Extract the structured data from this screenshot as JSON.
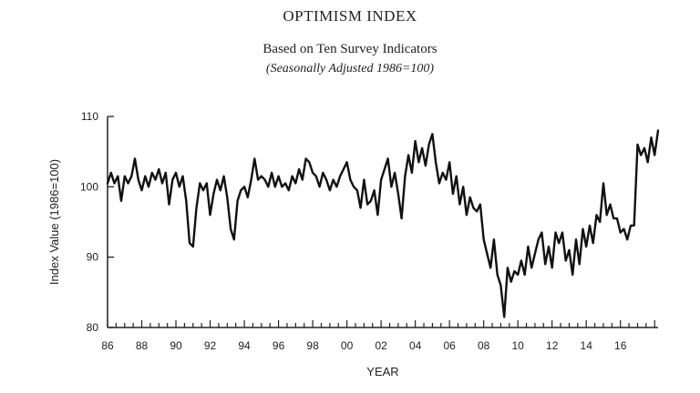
{
  "title": "OPTIMISM INDEX",
  "subtitle": "Based on Ten Survey Indicators",
  "note": "(Seasonally Adjusted 1986=100)",
  "chart_data": {
    "type": "line",
    "title": "OPTIMISM INDEX",
    "xlabel": "YEAR",
    "ylabel": "Index Value (1986=100)",
    "xlim": [
      1986,
      2018.2
    ],
    "ylim": [
      80,
      110
    ],
    "x_tick_labels": [
      "86",
      "88",
      "90",
      "92",
      "94",
      "96",
      "98",
      "00",
      "02",
      "04",
      "06",
      "08",
      "10",
      "12",
      "14",
      "16"
    ],
    "x_tick_values": [
      1986,
      1988,
      1990,
      1992,
      1994,
      1996,
      1998,
      2000,
      2002,
      2004,
      2006,
      2008,
      2010,
      2012,
      2014,
      2016
    ],
    "y_ticks": [
      80,
      90,
      100,
      110
    ],
    "grid": false,
    "line_color": "#111111",
    "series": [
      {
        "name": "Optimism Index",
        "x": [
          1986.0,
          1986.2,
          1986.4,
          1986.6,
          1986.8,
          1987.0,
          1987.2,
          1987.4,
          1987.6,
          1987.8,
          1988.0,
          1988.2,
          1988.4,
          1988.6,
          1988.8,
          1989.0,
          1989.2,
          1989.4,
          1989.6,
          1989.8,
          1990.0,
          1990.2,
          1990.4,
          1990.6,
          1990.8,
          1991.0,
          1991.2,
          1991.4,
          1991.6,
          1991.8,
          1992.0,
          1992.2,
          1992.4,
          1992.6,
          1992.8,
          1993.0,
          1993.2,
          1993.4,
          1993.6,
          1993.8,
          1994.0,
          1994.2,
          1994.4,
          1994.6,
          1994.8,
          1995.0,
          1995.2,
          1995.4,
          1995.6,
          1995.8,
          1996.0,
          1996.2,
          1996.4,
          1996.6,
          1996.8,
          1997.0,
          1997.2,
          1997.4,
          1997.6,
          1997.8,
          1998.0,
          1998.2,
          1998.4,
          1998.6,
          1998.8,
          1999.0,
          1999.2,
          1999.4,
          1999.6,
          1999.8,
          2000.0,
          2000.2,
          2000.4,
          2000.6,
          2000.8,
          2001.0,
          2001.2,
          2001.4,
          2001.6,
          2001.8,
          2002.0,
          2002.2,
          2002.4,
          2002.6,
          2002.8,
          2003.0,
          2003.2,
          2003.4,
          2003.6,
          2003.8,
          2004.0,
          2004.2,
          2004.4,
          2004.6,
          2004.8,
          2005.0,
          2005.2,
          2005.4,
          2005.6,
          2005.8,
          2006.0,
          2006.2,
          2006.4,
          2006.6,
          2006.8,
          2007.0,
          2007.2,
          2007.4,
          2007.6,
          2007.8,
          2008.0,
          2008.2,
          2008.4,
          2008.6,
          2008.8,
          2009.0,
          2009.2,
          2009.4,
          2009.6,
          2009.8,
          2010.0,
          2010.2,
          2010.4,
          2010.6,
          2010.8,
          2011.0,
          2011.2,
          2011.4,
          2011.6,
          2011.8,
          2012.0,
          2012.2,
          2012.4,
          2012.6,
          2012.8,
          2013.0,
          2013.2,
          2013.4,
          2013.6,
          2013.8,
          2014.0,
          2014.2,
          2014.4,
          2014.6,
          2014.8,
          2015.0,
          2015.2,
          2015.4,
          2015.6,
          2015.8,
          2016.0,
          2016.2,
          2016.4,
          2016.6,
          2016.8,
          2017.0,
          2017.2,
          2017.4,
          2017.6,
          2017.8,
          2018.0,
          2018.2
        ],
        "values": [
          100.5,
          102.0,
          100.5,
          101.5,
          98.0,
          101.5,
          100.5,
          101.5,
          104.0,
          101.0,
          99.5,
          101.5,
          100.0,
          102.0,
          101.0,
          102.5,
          100.5,
          102.0,
          97.5,
          101.0,
          102.0,
          100.0,
          101.5,
          98.0,
          92.0,
          91.5,
          97.0,
          100.5,
          99.5,
          100.5,
          96.0,
          99.0,
          101.0,
          99.5,
          101.5,
          98.5,
          94.0,
          92.5,
          98.0,
          99.5,
          100.0,
          98.5,
          101.0,
          104.0,
          101.0,
          101.5,
          101.0,
          100.0,
          102.0,
          100.0,
          101.5,
          100.0,
          100.5,
          99.5,
          101.5,
          100.5,
          102.5,
          101.0,
          104.0,
          103.5,
          102.0,
          101.5,
          100.0,
          102.0,
          101.0,
          99.5,
          101.0,
          100.0,
          101.5,
          102.5,
          103.5,
          101.0,
          100.0,
          99.5,
          97.0,
          101.0,
          97.5,
          98.0,
          99.5,
          96.0,
          101.0,
          102.5,
          104.0,
          100.0,
          102.0,
          99.0,
          95.5,
          101.5,
          104.5,
          102.0,
          106.5,
          103.5,
          105.5,
          103.0,
          106.0,
          107.5,
          103.5,
          100.5,
          102.0,
          101.0,
          103.5,
          99.0,
          101.5,
          97.5,
          100.0,
          96.0,
          98.5,
          97.0,
          96.5,
          97.5,
          92.5,
          90.5,
          88.5,
          92.5,
          87.5,
          86.0,
          81.5,
          88.5,
          86.5,
          88.0,
          87.5,
          89.5,
          87.5,
          91.5,
          88.5,
          90.5,
          92.5,
          93.5,
          89.0,
          91.5,
          88.5,
          93.5,
          92.0,
          93.5,
          89.5,
          91.0,
          87.5,
          92.5,
          89.0,
          94.0,
          91.5,
          94.5,
          92.0,
          96.0,
          95.0,
          100.5,
          96.0,
          97.5,
          95.5,
          95.5,
          93.5,
          94.0,
          92.5,
          94.5,
          94.5,
          106.0,
          104.5,
          105.5,
          103.5,
          107.0,
          104.5,
          108.0
        ]
      }
    ]
  }
}
